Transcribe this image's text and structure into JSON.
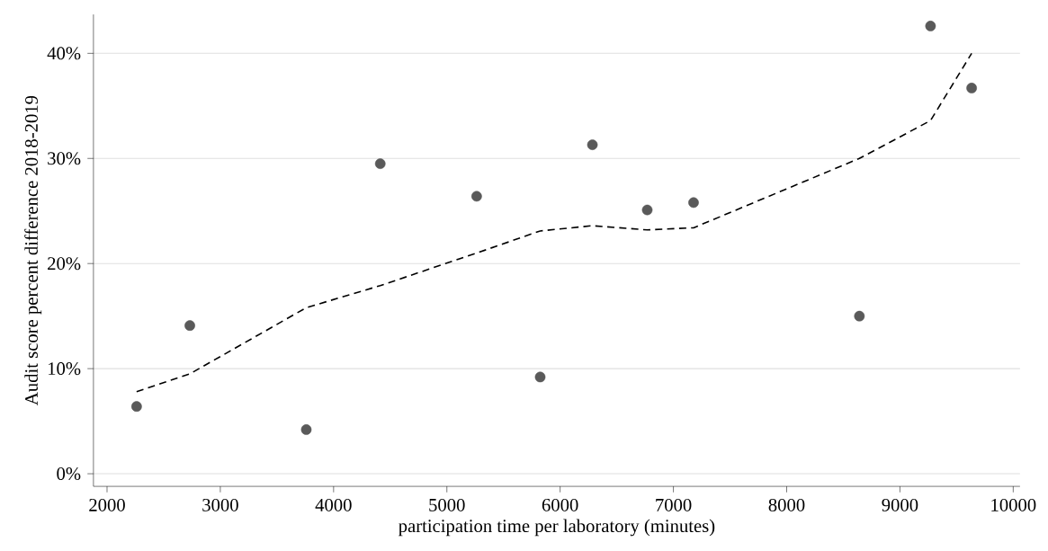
{
  "chart_data": {
    "type": "scatter",
    "xlabel": "participation time per laboratory (minutes)",
    "ylabel": "Audit score percent difference 2018-2019",
    "xlim": [
      1880,
      10060
    ],
    "ylim": [
      -1.2,
      43.7
    ],
    "xticks": [
      2000,
      3000,
      4000,
      5000,
      6000,
      7000,
      8000,
      9000,
      10000
    ],
    "yticks": [
      {
        "value": 0,
        "label": "0%"
      },
      {
        "value": 10,
        "label": "10%"
      },
      {
        "value": 20,
        "label": "20%"
      },
      {
        "value": 30,
        "label": "30%"
      },
      {
        "value": 40,
        "label": "40%"
      }
    ],
    "grid": "y",
    "series": [
      {
        "color": "#5a5a5a",
        "marker": "circle",
        "x": [
          2261,
          2731,
          3759,
          4412,
          5263,
          5824,
          6285,
          6769,
          7178,
          8642,
          9270,
          9633
        ],
        "values": [
          6.4,
          14.1,
          4.2,
          29.5,
          26.4,
          9.2,
          31.3,
          25.1,
          25.8,
          15.0,
          42.6,
          36.7
        ]
      },
      {
        "type": "line",
        "color": "#000000",
        "marker": "none",
        "line_style": "dashed",
        "x": [
          2261,
          2731,
          3759,
          4412,
          5263,
          5824,
          6285,
          6769,
          7178,
          8642,
          9270,
          9633
        ],
        "values": [
          7.8,
          9.5,
          15.8,
          17.9,
          21.0,
          23.1,
          23.6,
          23.2,
          23.4,
          30.0,
          33.6,
          40.0
        ]
      }
    ]
  }
}
